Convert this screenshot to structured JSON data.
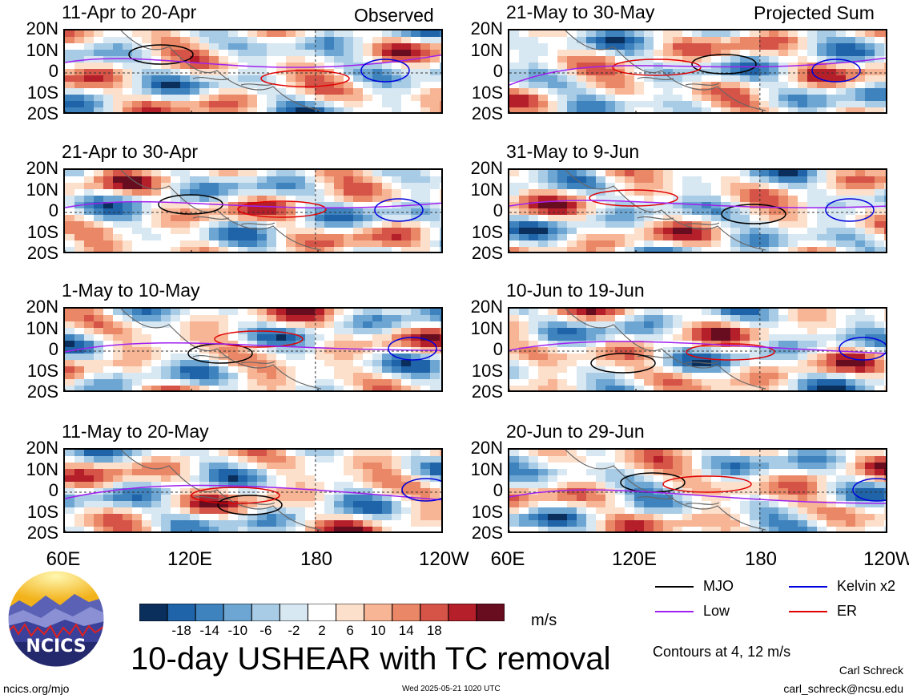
{
  "title": "10-day USHEAR with TC removal",
  "colorbar_units": "m/s",
  "footer_left": "ncics.org/mjo",
  "footer_center": "Wed 2025-05-21 1020 UTC",
  "author": "Carl Schreck",
  "email": "carl_schreck@ncsu.edu",
  "contour_note": "Contours at 4, 12 m/s",
  "logo_text": "NCICS",
  "column_notes": [
    "Observed",
    "Projected Sum"
  ],
  "chart_data": {
    "type": "heatmap",
    "x_ticks": [
      "60E",
      "120E",
      "180",
      "120W"
    ],
    "y_ticks": [
      "20N",
      "10N",
      "0",
      "10S",
      "20S"
    ],
    "panels": [
      {
        "label": "11-Apr to 20-Apr"
      },
      {
        "label": "21-Apr to 30-Apr"
      },
      {
        "label": "1-May to 10-May"
      },
      {
        "label": "11-May to 20-May"
      },
      {
        "label": "21-May to 30-May"
      },
      {
        "label": "31-May to 9-Jun"
      },
      {
        "label": "10-Jun to 19-Jun"
      },
      {
        "label": "20-Jun to 29-Jun"
      }
    ],
    "colorbar": {
      "ticks": [
        "-18",
        "-14",
        "-10",
        "-6",
        "-2",
        "2",
        "6",
        "10",
        "14",
        "18"
      ],
      "colors": [
        "#0b2f5c",
        "#1f63a8",
        "#3e82be",
        "#6da6d2",
        "#a8cbe6",
        "#d8e8f3",
        "#ffffff",
        "#fde0cc",
        "#f7b595",
        "#ea8766",
        "#d55347",
        "#b51f2a",
        "#680c1f"
      ]
    },
    "legend": [
      {
        "name": "MJO",
        "color": "#000000"
      },
      {
        "name": "Kelvin x2",
        "color": "#0000dd"
      },
      {
        "name": "Low",
        "color": "#a020f0"
      },
      {
        "name": "ER",
        "color": "#e00000"
      }
    ]
  }
}
